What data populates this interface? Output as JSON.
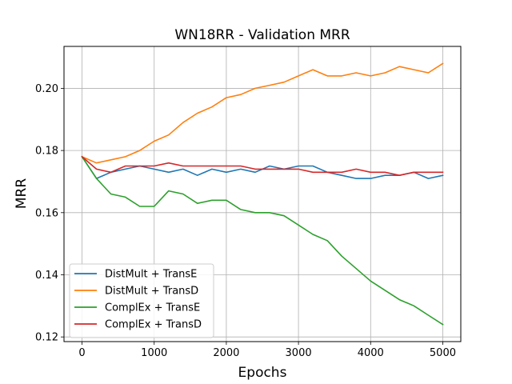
{
  "chart_data": {
    "type": "line",
    "title": "WN18RR - Validation MRR",
    "xlabel": "Epochs",
    "ylabel": "MRR",
    "xlim": [
      -250,
      5250
    ],
    "ylim": [
      0.1185,
      0.2135
    ],
    "grid": true,
    "legend_position": "lower-left",
    "xticks": [
      0,
      1000,
      2000,
      3000,
      4000,
      5000
    ],
    "yticks": [
      0.12,
      0.14,
      0.16,
      0.18,
      0.2
    ],
    "xtick_labels": [
      "0",
      "1000",
      "2000",
      "3000",
      "4000",
      "5000"
    ],
    "ytick_labels": [
      "0.12",
      "0.14",
      "0.16",
      "0.18",
      "0.20"
    ],
    "series": [
      {
        "name": "DistMult + TransE",
        "color": "#1f77b4",
        "x": [
          0,
          200,
          400,
          600,
          800,
          1000,
          1200,
          1400,
          1600,
          1800,
          2000,
          2200,
          2400,
          2600,
          2800,
          3000,
          3200,
          3400,
          3600,
          3800,
          4000,
          4200,
          4400,
          4600,
          4800,
          5000
        ],
        "y": [
          0.178,
          0.171,
          0.173,
          0.174,
          0.175,
          0.174,
          0.173,
          0.174,
          0.172,
          0.174,
          0.173,
          0.174,
          0.173,
          0.175,
          0.174,
          0.175,
          0.175,
          0.173,
          0.172,
          0.171,
          0.171,
          0.172,
          0.172,
          0.173,
          0.171,
          0.172
        ]
      },
      {
        "name": "DistMult + TransD",
        "color": "#ff7f0e",
        "x": [
          0,
          200,
          400,
          600,
          800,
          1000,
          1200,
          1400,
          1600,
          1800,
          2000,
          2200,
          2400,
          2600,
          2800,
          3000,
          3200,
          3400,
          3600,
          3800,
          4000,
          4200,
          4400,
          4600,
          4800,
          5000
        ],
        "y": [
          0.178,
          0.176,
          0.177,
          0.178,
          0.18,
          0.183,
          0.185,
          0.189,
          0.192,
          0.194,
          0.197,
          0.198,
          0.2,
          0.201,
          0.202,
          0.204,
          0.206,
          0.204,
          0.204,
          0.205,
          0.204,
          0.205,
          0.207,
          0.206,
          0.205,
          0.208
        ]
      },
      {
        "name": "ComplEx + TransE",
        "color": "#2ca02c",
        "x": [
          0,
          200,
          400,
          600,
          800,
          1000,
          1200,
          1400,
          1600,
          1800,
          2000,
          2200,
          2400,
          2600,
          2800,
          3000,
          3200,
          3400,
          3600,
          3800,
          4000,
          4200,
          4400,
          4600,
          4800,
          5000
        ],
        "y": [
          0.178,
          0.171,
          0.166,
          0.165,
          0.162,
          0.162,
          0.167,
          0.166,
          0.163,
          0.164,
          0.164,
          0.161,
          0.16,
          0.16,
          0.159,
          0.156,
          0.153,
          0.151,
          0.146,
          0.142,
          0.138,
          0.135,
          0.132,
          0.13,
          0.127,
          0.124
        ]
      },
      {
        "name": "ComplEx + TransD",
        "color": "#d62728",
        "x": [
          0,
          200,
          400,
          600,
          800,
          1000,
          1200,
          1400,
          1600,
          1800,
          2000,
          2200,
          2400,
          2600,
          2800,
          3000,
          3200,
          3400,
          3600,
          3800,
          4000,
          4200,
          4400,
          4600,
          4800,
          5000
        ],
        "y": [
          0.178,
          0.174,
          0.173,
          0.175,
          0.175,
          0.175,
          0.176,
          0.175,
          0.175,
          0.175,
          0.175,
          0.175,
          0.174,
          0.174,
          0.174,
          0.174,
          0.173,
          0.173,
          0.173,
          0.174,
          0.173,
          0.173,
          0.172,
          0.173,
          0.173,
          0.173
        ]
      }
    ]
  }
}
